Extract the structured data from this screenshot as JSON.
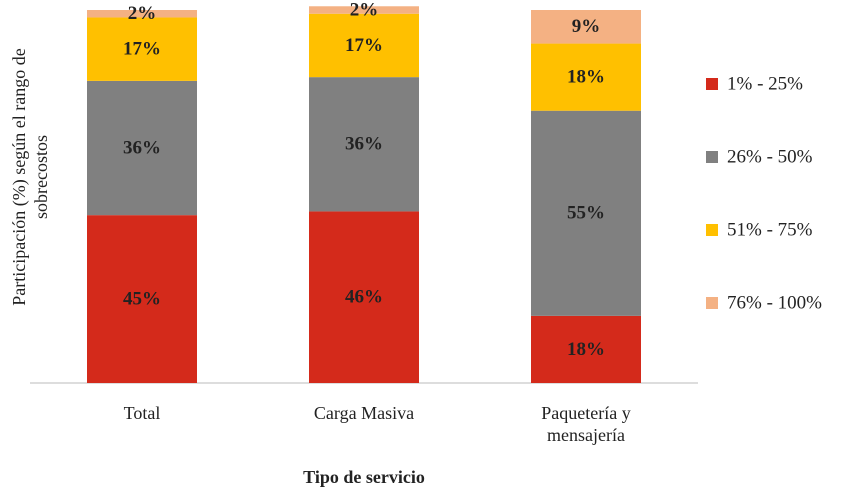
{
  "chart_data": {
    "type": "stacked_bar",
    "y_label": "Participación (%) según el rango de\nsobrecostos",
    "x_label": "Tipo de servicio",
    "categories": [
      "Total",
      "Carga Masiva",
      "Paquetería y\nmensajería"
    ],
    "ylim": [
      0,
      100
    ],
    "legend": "right",
    "series": [
      {
        "name": "1% - 25%",
        "color": "#d42a1b",
        "values": [
          45,
          46,
          18
        ],
        "value_labels": [
          "45%",
          "46%",
          "18%"
        ]
      },
      {
        "name": "26% - 50%",
        "color": "#808080",
        "values": [
          36,
          36,
          55
        ],
        "value_labels": [
          "36%",
          "36%",
          "55%"
        ]
      },
      {
        "name": "51% - 75%",
        "color": "#ffc000",
        "values": [
          17,
          17,
          18
        ],
        "value_labels": [
          "17%",
          "17%",
          "18%"
        ]
      },
      {
        "name": "76% - 100%",
        "color": "#f4b183",
        "values": [
          2,
          2,
          9
        ],
        "value_labels": [
          "2%",
          "2%",
          "9%"
        ]
      }
    ]
  }
}
